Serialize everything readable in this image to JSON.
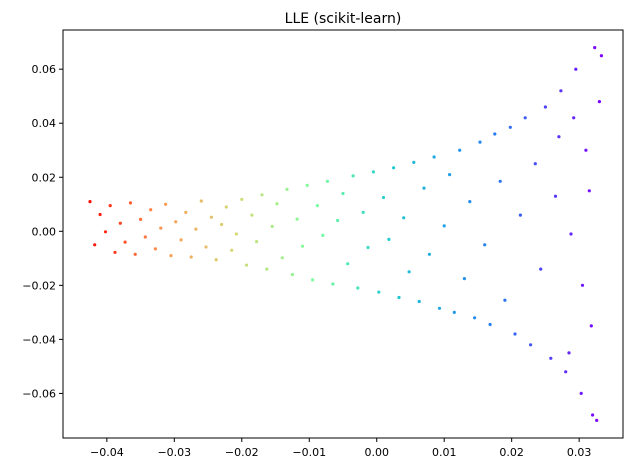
{
  "chart_data": {
    "type": "scatter",
    "title": "LLE (scikit-learn)",
    "xlabel": "",
    "ylabel": "",
    "xlim": [
      -0.0465,
      0.0365
    ],
    "ylim": [
      -0.0765,
      0.0745
    ],
    "xticks": [
      -0.04,
      -0.03,
      -0.02,
      -0.01,
      0.0,
      0.01,
      0.02,
      0.03
    ],
    "xtick_labels": [
      "−0.04",
      "−0.03",
      "−0.02",
      "−0.01",
      "0.00",
      "0.01",
      "0.02",
      "0.03"
    ],
    "yticks": [
      -0.06,
      -0.04,
      -0.02,
      0.0,
      0.02,
      0.04,
      0.06
    ],
    "ytick_labels": [
      "−0.06",
      "−0.04",
      "−0.02",
      "0.00",
      "0.02",
      "0.04",
      "0.06"
    ],
    "grid": false,
    "colormap": "rainbow",
    "color_mapped_to": "x (reversed: red at left, violet at right)",
    "point_color": "#ff0000",
    "points": [
      [
        -0.0425,
        0.011
      ],
      [
        -0.0418,
        -0.005
      ],
      [
        -0.041,
        0.0062
      ],
      [
        -0.0402,
        -0.0002
      ],
      [
        -0.0395,
        0.0095
      ],
      [
        -0.0388,
        -0.0078
      ],
      [
        -0.038,
        0.003
      ],
      [
        -0.0373,
        -0.004
      ],
      [
        -0.0365,
        0.0105
      ],
      [
        -0.0358,
        -0.0085
      ],
      [
        -0.035,
        0.0044
      ],
      [
        -0.0343,
        -0.0021
      ],
      [
        -0.0335,
        0.008
      ],
      [
        -0.0328,
        -0.0065
      ],
      [
        -0.032,
        0.0012
      ],
      [
        -0.0313,
        0.01
      ],
      [
        -0.0305,
        -0.009
      ],
      [
        -0.0298,
        0.0035
      ],
      [
        -0.029,
        -0.0032
      ],
      [
        -0.0283,
        0.007
      ],
      [
        -0.0275,
        -0.0095
      ],
      [
        -0.0268,
        0.0008
      ],
      [
        -0.026,
        0.0112
      ],
      [
        -0.0253,
        -0.0058
      ],
      [
        -0.0245,
        0.0052
      ],
      [
        -0.0238,
        -0.0105
      ],
      [
        -0.023,
        0.0025
      ],
      [
        -0.0223,
        0.009
      ],
      [
        -0.0215,
        -0.007
      ],
      [
        -0.0208,
        -0.001
      ],
      [
        -0.02,
        0.0118
      ],
      [
        -0.0193,
        -0.0125
      ],
      [
        -0.0185,
        0.006
      ],
      [
        -0.0178,
        -0.0038
      ],
      [
        -0.017,
        0.0135
      ],
      [
        -0.0163,
        -0.014
      ],
      [
        -0.0155,
        0.0018
      ],
      [
        -0.0148,
        0.0102
      ],
      [
        -0.014,
        -0.0098
      ],
      [
        -0.0133,
        0.0155
      ],
      [
        -0.0125,
        -0.016
      ],
      [
        -0.0118,
        0.0045
      ],
      [
        -0.011,
        -0.0055
      ],
      [
        -0.0103,
        0.017
      ],
      [
        -0.0095,
        -0.018
      ],
      [
        -0.0088,
        0.0095
      ],
      [
        -0.008,
        -0.0015
      ],
      [
        -0.0073,
        0.0185
      ],
      [
        -0.0065,
        -0.0195
      ],
      [
        -0.0058,
        0.004
      ],
      [
        -0.005,
        0.014
      ],
      [
        -0.0043,
        -0.012
      ],
      [
        -0.0035,
        0.0205
      ],
      [
        -0.0028,
        -0.021
      ],
      [
        -0.002,
        0.007
      ],
      [
        -0.0013,
        -0.006
      ],
      [
        -0.0005,
        0.022
      ],
      [
        0.0003,
        -0.0225
      ],
      [
        0.001,
        0.0125
      ],
      [
        0.0018,
        -0.003
      ],
      [
        0.0025,
        0.0235
      ],
      [
        0.0033,
        -0.0245
      ],
      [
        0.004,
        0.005
      ],
      [
        0.0048,
        -0.015
      ],
      [
        0.0055,
        0.0255
      ],
      [
        0.0063,
        -0.026
      ],
      [
        0.007,
        0.016
      ],
      [
        0.0078,
        -0.0085
      ],
      [
        0.0085,
        0.0275
      ],
      [
        0.0093,
        -0.0285
      ],
      [
        0.01,
        0.002
      ],
      [
        0.0108,
        0.021
      ],
      [
        0.0115,
        -0.03
      ],
      [
        0.0123,
        0.03
      ],
      [
        0.013,
        -0.0175
      ],
      [
        0.0138,
        0.011
      ],
      [
        0.0145,
        -0.032
      ],
      [
        0.0153,
        0.033
      ],
      [
        0.016,
        -0.005
      ],
      [
        0.0168,
        -0.0345
      ],
      [
        0.0175,
        0.036
      ],
      [
        0.0183,
        0.0185
      ],
      [
        0.019,
        -0.0255
      ],
      [
        0.0198,
        0.0385
      ],
      [
        0.0205,
        -0.038
      ],
      [
        0.0213,
        0.006
      ],
      [
        0.022,
        0.042
      ],
      [
        0.0228,
        -0.042
      ],
      [
        0.0235,
        0.025
      ],
      [
        0.0243,
        -0.014
      ],
      [
        0.025,
        0.046
      ],
      [
        0.0258,
        -0.047
      ],
      [
        0.0265,
        0.013
      ],
      [
        0.0273,
        0.052
      ],
      [
        0.028,
        -0.052
      ],
      [
        0.0288,
        -0.001
      ],
      [
        0.0295,
        0.06
      ],
      [
        0.0303,
        -0.06
      ],
      [
        0.031,
        0.03
      ],
      [
        0.0318,
        -0.035
      ],
      [
        0.0323,
        0.068
      ],
      [
        0.0326,
        -0.07
      ],
      [
        0.033,
        0.048
      ],
      [
        0.0333,
        0.065
      ],
      [
        0.032,
        -0.068
      ],
      [
        0.0315,
        0.015
      ],
      [
        0.0305,
        -0.02
      ],
      [
        0.0292,
        0.042
      ],
      [
        0.0285,
        -0.045
      ],
      [
        0.027,
        0.035
      ]
    ]
  }
}
